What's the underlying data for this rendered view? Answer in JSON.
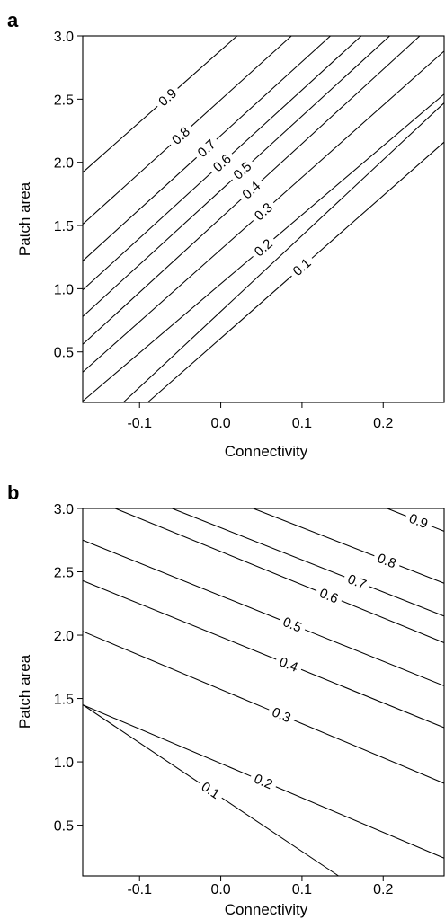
{
  "chart_data": [
    {
      "type": "contour",
      "panel_label": "a",
      "xlabel": "Connectivity",
      "ylabel": "Patch area",
      "xlim": [
        -0.17,
        0.275
      ],
      "ylim": [
        0.1,
        3.0
      ],
      "xticks": [
        -0.1,
        0.0,
        0.1,
        0.2
      ],
      "xtick_labels": [
        "-0.1",
        "0.0",
        "0.1",
        "0.2"
      ],
      "yticks": [
        0.5,
        1.0,
        1.5,
        2.0,
        2.5,
        3.0
      ],
      "ytick_labels": [
        "0.5",
        "1.0",
        "1.5",
        "2.0",
        "2.5",
        "3.0"
      ],
      "grid": false,
      "contours": [
        {
          "level": 0.9,
          "label": "0.9",
          "points": [
            [
              -0.17,
              1.92
            ],
            [
              0.02,
              3.0
            ]
          ],
          "label_at": 0.55
        },
        {
          "level": 0.8,
          "label": "0.8",
          "points": [
            [
              -0.17,
              1.51
            ],
            [
              0.087,
              3.0
            ]
          ],
          "label_at": 0.47
        },
        {
          "level": 0.7,
          "label": "0.7",
          "points": [
            [
              -0.17,
              1.22
            ],
            [
              0.135,
              3.0
            ]
          ],
          "label_at": 0.5
        },
        {
          "level": 0.6,
          "label": "0.6",
          "points": [
            [
              -0.17,
              0.99
            ],
            [
              0.173,
              3.0
            ]
          ],
          "label_at": 0.5
        },
        {
          "level": 0.5,
          "label": "0.5",
          "points": [
            [
              -0.17,
              0.78
            ],
            [
              0.208,
              3.0
            ]
          ],
          "label_at": 0.52
        },
        {
          "level": 0.4,
          "label": "0.4",
          "points": [
            [
              -0.17,
              0.56
            ],
            [
              0.245,
              3.0
            ]
          ],
          "label_at": 0.5
        },
        {
          "level": 0.3,
          "label": "0.3",
          "points": [
            [
              -0.17,
              0.34
            ],
            [
              0.275,
              2.88
            ]
          ],
          "label_at": 0.5
        },
        {
          "level": 0.2,
          "label": "0.2",
          "points": [
            [
              -0.17,
              0.11
            ],
            [
              0.275,
              2.54
            ]
          ],
          "label_at": 0.5
        },
        {
          "level": "",
          "label": "",
          "points": [
            [
              -0.12,
              0.1
            ],
            [
              0.275,
              2.47
            ]
          ],
          "label_at": null
        },
        {
          "level": 0.1,
          "label": "0.1",
          "points": [
            [
              -0.09,
              0.1
            ],
            [
              0.275,
              2.16
            ]
          ],
          "label_at": 0.52
        }
      ]
    },
    {
      "type": "contour",
      "panel_label": "b",
      "xlabel": "Connectivity",
      "ylabel": "Patch area",
      "xlim": [
        -0.17,
        0.275
      ],
      "ylim": [
        0.1,
        3.0
      ],
      "xticks": [
        -0.1,
        0.0,
        0.1,
        0.2
      ],
      "xtick_labels": [
        "-0.1",
        "0.0",
        "0.1",
        "0.2"
      ],
      "yticks": [
        0.5,
        1.0,
        1.5,
        2.0,
        2.5,
        3.0
      ],
      "ytick_labels": [
        "0.5",
        "1.0",
        "1.5",
        "2.0",
        "2.5",
        "3.0"
      ],
      "grid": false,
      "contours": [
        {
          "level": 0.9,
          "label": "0.9",
          "points": [
            [
              0.205,
              3.0
            ],
            [
              0.275,
              2.82
            ]
          ],
          "label_at": 0.55
        },
        {
          "level": 0.8,
          "label": "0.8",
          "points": [
            [
              0.04,
              3.0
            ],
            [
              0.275,
              2.41
            ]
          ],
          "label_at": 0.7
        },
        {
          "level": 0.7,
          "label": "0.7",
          "points": [
            [
              -0.06,
              3.0
            ],
            [
              0.275,
              2.15
            ]
          ],
          "label_at": 0.68
        },
        {
          "level": 0.6,
          "label": "0.6",
          "points": [
            [
              -0.13,
              3.0
            ],
            [
              0.275,
              1.94
            ]
          ],
          "label_at": 0.65
        },
        {
          "level": 0.5,
          "label": "0.5",
          "points": [
            [
              -0.17,
              2.75
            ],
            [
              0.275,
              1.6
            ]
          ],
          "label_at": 0.58
        },
        {
          "level": 0.4,
          "label": "0.4",
          "points": [
            [
              -0.17,
              2.43
            ],
            [
              0.275,
              1.27
            ]
          ],
          "label_at": 0.57
        },
        {
          "level": 0.3,
          "label": "0.3",
          "points": [
            [
              -0.17,
              2.03
            ],
            [
              0.275,
              0.83
            ]
          ],
          "label_at": 0.55
        },
        {
          "level": 0.2,
          "label": "0.2",
          "points": [
            [
              -0.17,
              1.45
            ],
            [
              0.275,
              0.24
            ]
          ],
          "label_at": 0.5
        },
        {
          "level": 0.1,
          "label": "0.1",
          "points": [
            [
              -0.17,
              1.45
            ],
            [
              0.145,
              0.1
            ]
          ],
          "label_at": -1
        },
        {
          "level": "",
          "label": "",
          "points": [
            [
              -0.17,
              1.45
            ],
            [
              0.145,
              0.1
            ]
          ],
          "label_at": null
        }
      ]
    }
  ]
}
